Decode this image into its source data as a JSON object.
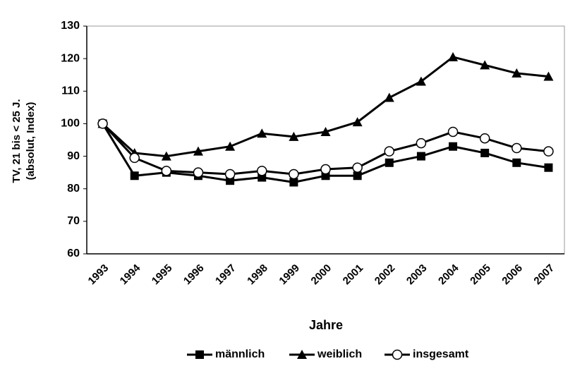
{
  "chart_data": {
    "type": "line",
    "xlabel": "Jahre",
    "ylabel": [
      "TV, 21 bis < 25 J.",
      "(absolut, Index)"
    ],
    "categories": [
      "1993",
      "1994",
      "1995",
      "1996",
      "1997",
      "1998",
      "1999",
      "2000",
      "2001",
      "2002",
      "2003",
      "2004",
      "2005",
      "2006",
      "2007"
    ],
    "series": [
      {
        "name": "männlich",
        "color": "#000000",
        "marker": "square",
        "values": [
          100,
          84,
          85,
          84,
          82.5,
          83.5,
          82,
          84,
          84,
          88,
          90,
          93,
          91,
          88,
          86.5
        ]
      },
      {
        "name": "weiblich",
        "color": "#000000",
        "marker": "triangle",
        "values": [
          100,
          91,
          90,
          91.5,
          93,
          97,
          96,
          97.5,
          100.5,
          108,
          113,
          120.5,
          118,
          115.5,
          114.5
        ]
      },
      {
        "name": "insgesamt",
        "color": "#000000",
        "marker": "circle",
        "values": [
          100,
          89.5,
          85.5,
          85,
          84.5,
          85.5,
          84.5,
          86,
          86.5,
          91.5,
          94,
          97.5,
          95.5,
          92.5,
          91.5
        ]
      }
    ],
    "ylim": [
      60,
      130
    ],
    "yticks": [
      60,
      70,
      80,
      90,
      100,
      110,
      120,
      130
    ],
    "grid": false,
    "legend": "bottom"
  }
}
